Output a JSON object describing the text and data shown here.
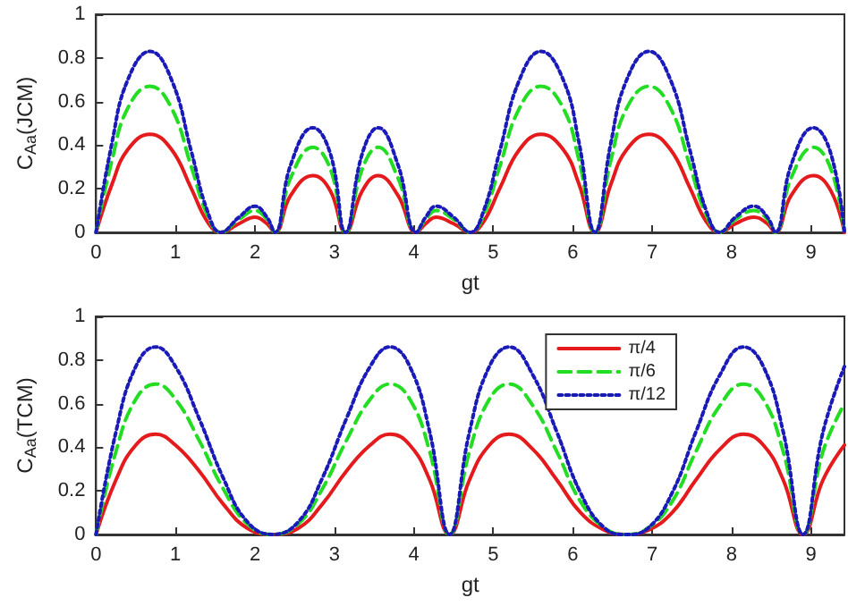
{
  "chart_data": [
    {
      "type": "line",
      "xlabel": "gt",
      "ylabel": "C$_{Aa}$(JCM)",
      "xlim": [
        0,
        9.42
      ],
      "xticks": [
        0,
        1,
        2,
        3,
        4,
        5,
        6,
        7,
        8,
        9
      ],
      "ylim": [
        0,
        1
      ],
      "yticks": [
        0,
        0.2,
        0.4,
        0.6,
        0.8,
        1
      ],
      "grid": false,
      "legend": false,
      "marker": "none",
      "x": [
        0,
        0.2,
        0.4,
        0.68,
        0.95,
        1.2,
        1.4,
        1.57,
        1.8,
        2.0,
        2.15,
        2.25,
        2.45,
        2.73,
        2.95,
        3.14,
        3.35,
        3.55,
        3.8,
        4.03,
        4.15,
        4.28,
        4.5,
        4.71,
        4.88,
        5.08,
        5.33,
        5.6,
        5.88,
        6.08,
        6.28,
        6.48,
        6.68,
        6.96,
        7.23,
        7.48,
        7.68,
        7.85,
        8.05,
        8.28,
        8.45,
        8.55,
        8.75,
        9.03,
        9.25,
        9.42
      ],
      "series": [
        {
          "color": "#e41a1c",
          "line_style": "solid",
          "values": [
            0,
            0.22,
            0.38,
            0.45,
            0.38,
            0.2,
            0.05,
            0,
            0.04,
            0.07,
            0.04,
            0,
            0.17,
            0.26,
            0.19,
            0,
            0.19,
            0.26,
            0.17,
            0,
            0.04,
            0.07,
            0.04,
            0,
            0.05,
            0.2,
            0.38,
            0.45,
            0.38,
            0.22,
            0,
            0.22,
            0.38,
            0.45,
            0.38,
            0.2,
            0.05,
            0,
            0.04,
            0.07,
            0.04,
            0,
            0.17,
            0.26,
            0.19,
            0
          ]
        },
        {
          "color": "#22dd22",
          "line_style": "dashed",
          "values": [
            0,
            0.33,
            0.57,
            0.67,
            0.57,
            0.3,
            0.08,
            0,
            0.06,
            0.1,
            0.06,
            0,
            0.25,
            0.39,
            0.29,
            0,
            0.29,
            0.39,
            0.25,
            0,
            0.06,
            0.1,
            0.06,
            0,
            0.08,
            0.3,
            0.57,
            0.67,
            0.57,
            0.33,
            0,
            0.33,
            0.57,
            0.67,
            0.57,
            0.3,
            0.08,
            0,
            0.06,
            0.1,
            0.06,
            0,
            0.25,
            0.39,
            0.29,
            0
          ]
        },
        {
          "color": "#1a1ab8",
          "line_style": "dotted",
          "values": [
            0,
            0.41,
            0.7,
            0.83,
            0.7,
            0.37,
            0.1,
            0,
            0.07,
            0.12,
            0.07,
            0,
            0.31,
            0.48,
            0.36,
            0,
            0.36,
            0.48,
            0.31,
            0,
            0.07,
            0.12,
            0.07,
            0,
            0.1,
            0.37,
            0.7,
            0.83,
            0.7,
            0.41,
            0,
            0.41,
            0.7,
            0.83,
            0.7,
            0.37,
            0.1,
            0,
            0.07,
            0.12,
            0.07,
            0,
            0.31,
            0.48,
            0.36,
            0
          ]
        }
      ]
    },
    {
      "type": "line",
      "xlabel": "gt",
      "ylabel": "C$_{Aa}$(TCM)",
      "xlim": [
        0,
        9.42
      ],
      "xticks": [
        0,
        1,
        2,
        3,
        4,
        5,
        6,
        7,
        8,
        9
      ],
      "ylim": [
        0,
        1
      ],
      "yticks": [
        0,
        0.2,
        0.4,
        0.6,
        0.8,
        1
      ],
      "grid": false,
      "legend": "top right",
      "marker": "none",
      "x": [
        0,
        0.25,
        0.5,
        0.75,
        1.0,
        1.3,
        1.6,
        1.9,
        2.22,
        2.55,
        2.85,
        3.15,
        3.45,
        3.7,
        3.95,
        4.2,
        4.45,
        4.7,
        4.95,
        5.2,
        5.5,
        5.8,
        6.1,
        6.4,
        6.67,
        6.95,
        7.25,
        7.55,
        7.85,
        8.15,
        8.4,
        8.65,
        8.9,
        9.15,
        9.42
      ],
      "series": [
        {
          "name": "π/4",
          "color": "#e41a1c",
          "line_style": "solid",
          "values": [
            0,
            0.25,
            0.41,
            0.46,
            0.41,
            0.29,
            0.14,
            0.03,
            0,
            0.03,
            0.14,
            0.29,
            0.41,
            0.46,
            0.41,
            0.25,
            0,
            0.25,
            0.41,
            0.46,
            0.39,
            0.25,
            0.1,
            0.02,
            0,
            0.02,
            0.1,
            0.25,
            0.39,
            0.46,
            0.41,
            0.25,
            0,
            0.25,
            0.41
          ]
        },
        {
          "name": "π/6",
          "color": "#22dd22",
          "line_style": "dashed",
          "values": [
            0,
            0.38,
            0.62,
            0.69,
            0.62,
            0.43,
            0.21,
            0.05,
            0,
            0.05,
            0.21,
            0.43,
            0.62,
            0.69,
            0.62,
            0.38,
            0,
            0.38,
            0.62,
            0.69,
            0.59,
            0.38,
            0.15,
            0.03,
            0,
            0.03,
            0.15,
            0.38,
            0.59,
            0.69,
            0.62,
            0.38,
            0,
            0.38,
            0.6
          ]
        },
        {
          "name": "π/12",
          "color": "#1a1ab8",
          "line_style": "dotted",
          "values": [
            0,
            0.47,
            0.77,
            0.86,
            0.77,
            0.53,
            0.26,
            0.06,
            0,
            0.06,
            0.26,
            0.53,
            0.77,
            0.86,
            0.77,
            0.47,
            0,
            0.47,
            0.77,
            0.86,
            0.73,
            0.47,
            0.19,
            0.03,
            0,
            0.03,
            0.19,
            0.47,
            0.73,
            0.86,
            0.77,
            0.47,
            0,
            0.47,
            0.77
          ]
        }
      ]
    }
  ]
}
